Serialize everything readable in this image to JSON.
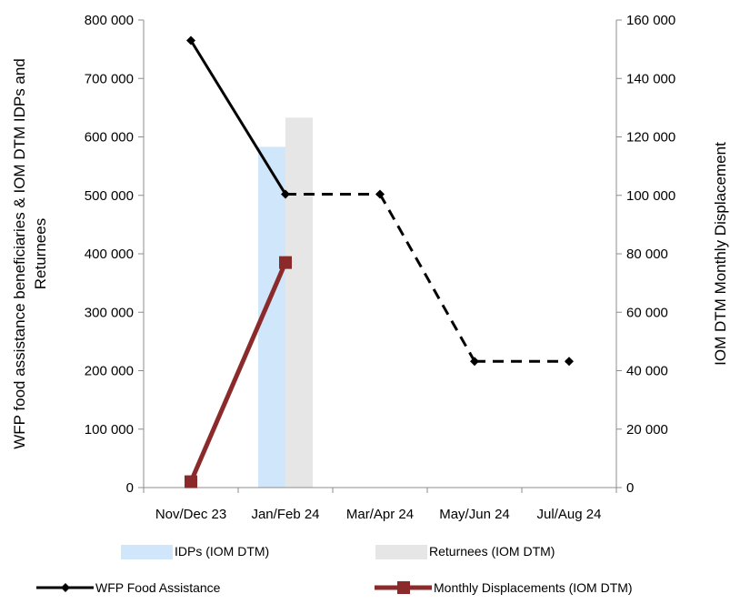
{
  "chart_data": {
    "type": "bar+line",
    "categories": [
      "Nov/Dec 23",
      "Jan/Feb 24",
      "Mar/Apr 24",
      "May/Jun 24",
      "Jul/Aug 24"
    ],
    "ylabel": "WFP food assistance beneficiaries & IOM DTM IDPs and Returnees",
    "ylabel_lines": [
      "WFP food assistance beneficiaries & IOM DTM IDPs and",
      "Returnees"
    ],
    "y2label": "IOM DTM Monthly Displacement",
    "ylim": [
      0,
      800000
    ],
    "y2lim": [
      0,
      160000
    ],
    "yticks": [
      "0",
      "100 000",
      "200 000",
      "300 000",
      "400 000",
      "500 000",
      "600 000",
      "700 000",
      "800 000"
    ],
    "y2ticks": [
      "0",
      "20 000",
      "40 000",
      "60 000",
      "80 000",
      "100 000",
      "120 000",
      "140 000",
      "160 000"
    ],
    "series": [
      {
        "name": "IDPs (IOM DTM)",
        "kind": "bar",
        "axis": "left",
        "color": "#cfe6fb",
        "values": [
          null,
          583000,
          null,
          null,
          null
        ]
      },
      {
        "name": "Returnees (IOM DTM)",
        "kind": "bar",
        "axis": "left",
        "color": "#e6e6e6",
        "values": [
          null,
          633000,
          null,
          null,
          null
        ]
      },
      {
        "name": "WFP Food Assistance",
        "kind": "line",
        "axis": "left",
        "color": "#000000",
        "marker": "diamond",
        "values": [
          765000,
          502000,
          502000,
          216000,
          216000
        ],
        "dashed_from_index": 1
      },
      {
        "name": "Monthly Displacements (IOM DTM)",
        "kind": "line",
        "axis": "right",
        "color": "#8b2a2a",
        "marker": "square",
        "values": [
          2000,
          77000,
          null,
          null,
          null
        ]
      }
    ],
    "legend_position": "bottom",
    "grid": false
  }
}
